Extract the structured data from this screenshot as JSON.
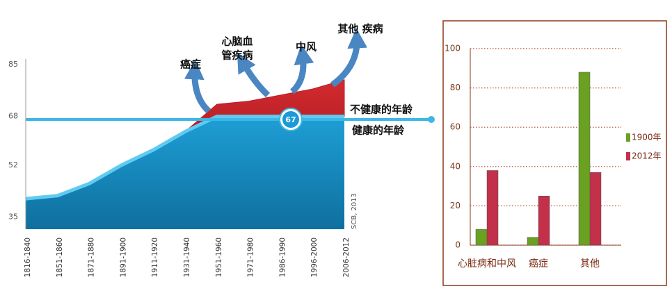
{
  "chart_data": [
    {
      "type": "area",
      "categories": [
        "1816-1840",
        "1851-1860",
        "1871-1880",
        "1891-1900",
        "1911-1920",
        "1931-1940",
        "1951-1960",
        "1971-1980",
        "1986-1990",
        "1996-2000",
        "2006-2012"
      ],
      "series": [
        {
          "name": "健康的年龄",
          "color": "#1f95c8",
          "values": [
            41,
            42,
            46,
            52,
            57,
            63,
            68,
            68,
            68,
            68,
            68
          ]
        },
        {
          "name": "不健康的年龄",
          "color": "#b8212a",
          "values": [
            0,
            0,
            0,
            0,
            0,
            0,
            4,
            5,
            7,
            9,
            12
          ]
        }
      ],
      "ylim": [
        31,
        85
      ],
      "yticks": [
        35,
        52,
        68,
        85
      ],
      "marker": {
        "value": 67
      },
      "annotations": [
        [
          "癌症"
        ],
        [
          "心脑血",
          "管疾病"
        ],
        [
          "中风"
        ],
        [
          "其他 疾病"
        ]
      ],
      "source": "SCB, 2013"
    },
    {
      "type": "bar",
      "categories": [
        "心脏病和中风",
        "癌症",
        "其他"
      ],
      "series": [
        {
          "name": "1900年",
          "color": "#6aa121",
          "values": [
            8,
            4,
            88
          ]
        },
        {
          "name": "2012年",
          "color": "#c2304a",
          "values": [
            38,
            25,
            37
          ]
        }
      ],
      "ylim": [
        0,
        100
      ],
      "yticks": [
        0,
        20,
        40,
        60,
        80,
        100
      ],
      "grid": true,
      "legend": "right"
    }
  ]
}
